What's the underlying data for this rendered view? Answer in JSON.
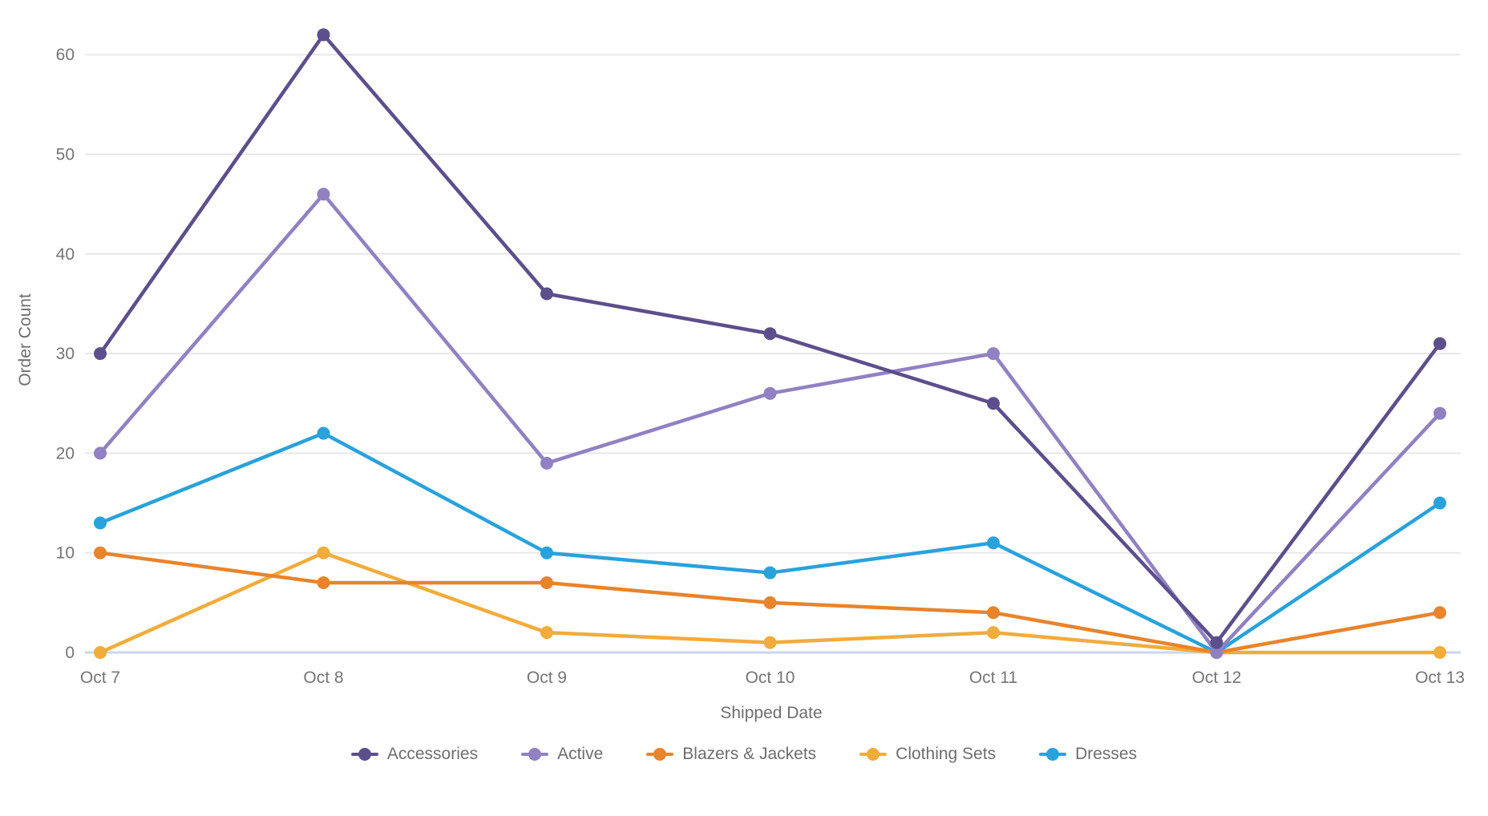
{
  "chart_data": {
    "type": "line",
    "title": "",
    "xlabel": "Shipped Date",
    "ylabel": "Order Count",
    "categories": [
      "Oct 7",
      "Oct 8",
      "Oct 9",
      "Oct 10",
      "Oct 11",
      "Oct 12",
      "Oct 13"
    ],
    "series": [
      {
        "name": "Accessories",
        "color": "#5D4E8C",
        "values": [
          30,
          62,
          36,
          32,
          25,
          1,
          31
        ]
      },
      {
        "name": "Active",
        "color": "#9181C2",
        "values": [
          20,
          46,
          19,
          26,
          30,
          0,
          24
        ]
      },
      {
        "name": "Blazers & Jackets",
        "color": "#E8842C",
        "values": [
          10,
          7,
          7,
          5,
          4,
          0,
          4
        ]
      },
      {
        "name": "Clothing Sets",
        "color": "#F2AC3B",
        "values": [
          0,
          10,
          2,
          1,
          2,
          0,
          0
        ]
      },
      {
        "name": "Dresses",
        "color": "#29A2DB",
        "values": [
          13,
          22,
          10,
          8,
          11,
          0,
          15
        ]
      }
    ],
    "yticks": [
      0,
      10,
      20,
      30,
      40,
      50,
      60
    ],
    "ylim": [
      0,
      62
    ],
    "grid": true,
    "legend_position": "bottom",
    "colors": {
      "gridline": "#E8E8E8",
      "baseline": "#CBD6EC",
      "tick_text": "#757575",
      "axis_title_text": "#6E6E6E"
    }
  }
}
